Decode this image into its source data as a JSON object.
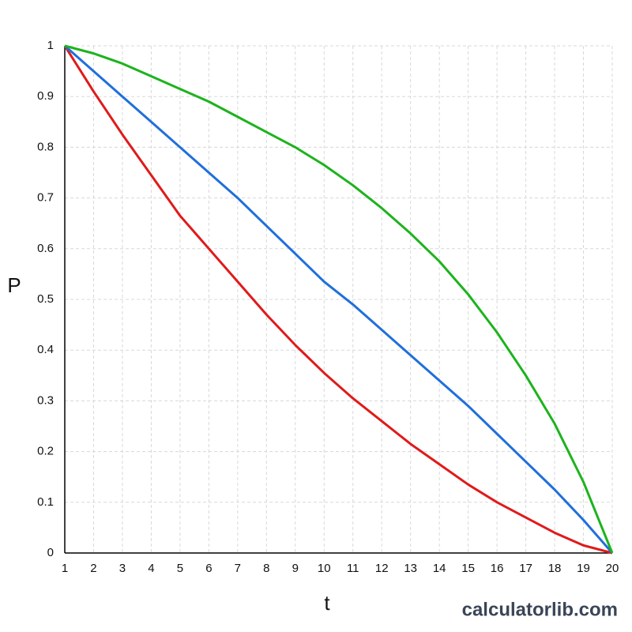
{
  "chart_data": {
    "type": "line",
    "x_label": "t",
    "y_label": "P",
    "watermark": "calculatorlib.com",
    "x": [
      1,
      2,
      3,
      4,
      5,
      6,
      7,
      8,
      9,
      10,
      11,
      12,
      13,
      14,
      15,
      16,
      17,
      18,
      19,
      20
    ],
    "series": [
      {
        "color": "#e01a1a",
        "values": [
          1,
          0.91,
          0.825,
          0.745,
          0.665,
          0.6,
          0.535,
          0.47,
          0.41,
          0.355,
          0.305,
          0.26,
          0.215,
          0.175,
          0.135,
          0.1,
          0.07,
          0.04,
          0.015,
          0
        ]
      },
      {
        "color": "#1f6fdc",
        "values": [
          1,
          0.95,
          0.9,
          0.85,
          0.8,
          0.75,
          0.7,
          0.645,
          0.59,
          0.535,
          0.49,
          0.44,
          0.39,
          0.34,
          0.29,
          0.235,
          0.18,
          0.125,
          0.065,
          0
        ]
      },
      {
        "color": "#1db31d",
        "values": [
          1,
          0.985,
          0.965,
          0.94,
          0.915,
          0.89,
          0.86,
          0.83,
          0.8,
          0.765,
          0.725,
          0.68,
          0.63,
          0.575,
          0.51,
          0.435,
          0.35,
          0.255,
          0.14,
          0
        ]
      }
    ],
    "xlim": [
      1,
      20
    ],
    "ylim": [
      0,
      1
    ],
    "xticks": [
      1,
      2,
      3,
      4,
      5,
      6,
      7,
      8,
      9,
      10,
      11,
      12,
      13,
      14,
      15,
      16,
      17,
      18,
      19,
      20
    ],
    "yticks": [
      0,
      0.1,
      0.2,
      0.3,
      0.4,
      0.5,
      0.6,
      0.7,
      0.8,
      0.9,
      1
    ],
    "grid": true
  }
}
